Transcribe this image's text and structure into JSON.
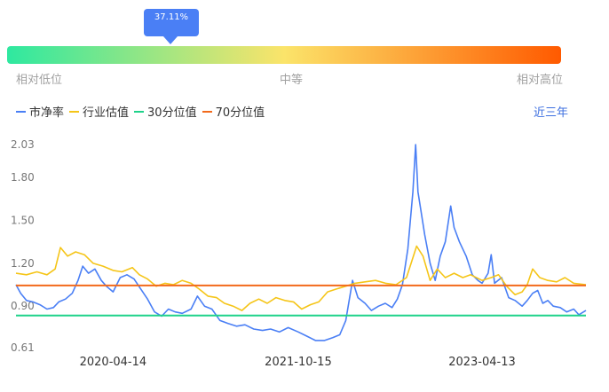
{
  "percentile": {
    "value": 37.11,
    "label": "37.11%",
    "band_labels": [
      "相对低位",
      "中等",
      "相对高位"
    ],
    "gradient_colors": [
      "#2ee8a0",
      "#fbe46a",
      "#ff5a00"
    ]
  },
  "legend": [
    {
      "name": "市净率",
      "color": "#4a7ff5"
    },
    {
      "name": "行业估值",
      "color": "#f5c518"
    },
    {
      "name": "30分位值",
      "color": "#1fd28a"
    },
    {
      "name": "70分位值",
      "color": "#f26a1b"
    }
  ],
  "period_selector": "近三年",
  "chart_data": {
    "type": "line",
    "ylim": [
      0.61,
      2.03
    ],
    "y_ticks": [
      "2.03",
      "1.80",
      "1.50",
      "1.20",
      "0.90",
      "0.61"
    ],
    "x_ticks": [
      "2020-04-14",
      "2021-10-15",
      "2023-04-13"
    ],
    "x_range": [
      "2019-07-01",
      "2024-02-15"
    ],
    "series": [
      {
        "name": "市净率",
        "color": "#4a7ff5",
        "points": [
          [
            "2019-07-01",
            1.05
          ],
          [
            "2019-07-15",
            0.99
          ],
          [
            "2019-08-01",
            0.94
          ],
          [
            "2019-08-20",
            0.93
          ],
          [
            "2019-09-10",
            0.91
          ],
          [
            "2019-10-01",
            0.88
          ],
          [
            "2019-10-20",
            0.89
          ],
          [
            "2019-11-05",
            0.93
          ],
          [
            "2019-11-25",
            0.95
          ],
          [
            "2019-12-15",
            0.99
          ],
          [
            "2020-01-01",
            1.08
          ],
          [
            "2020-01-15",
            1.18
          ],
          [
            "2020-02-01",
            1.13
          ],
          [
            "2020-02-20",
            1.16
          ],
          [
            "2020-03-10",
            1.08
          ],
          [
            "2020-03-25",
            1.04
          ],
          [
            "2020-04-14",
            1.0
          ],
          [
            "2020-05-05",
            1.1
          ],
          [
            "2020-05-25",
            1.12
          ],
          [
            "2020-06-15",
            1.09
          ],
          [
            "2020-07-05",
            1.02
          ],
          [
            "2020-07-25",
            0.95
          ],
          [
            "2020-08-15",
            0.86
          ],
          [
            "2020-09-05",
            0.83
          ],
          [
            "2020-09-25",
            0.88
          ],
          [
            "2020-10-15",
            0.86
          ],
          [
            "2020-11-05",
            0.85
          ],
          [
            "2020-12-01",
            0.88
          ],
          [
            "2020-12-20",
            0.97
          ],
          [
            "2021-01-10",
            0.9
          ],
          [
            "2021-02-01",
            0.88
          ],
          [
            "2021-02-25",
            0.8
          ],
          [
            "2021-03-20",
            0.78
          ],
          [
            "2021-04-15",
            0.76
          ],
          [
            "2021-05-10",
            0.77
          ],
          [
            "2021-06-05",
            0.74
          ],
          [
            "2021-07-01",
            0.73
          ],
          [
            "2021-07-25",
            0.74
          ],
          [
            "2021-08-20",
            0.72
          ],
          [
            "2021-09-15",
            0.75
          ],
          [
            "2021-10-15",
            0.72
          ],
          [
            "2021-11-10",
            0.69
          ],
          [
            "2021-12-05",
            0.66
          ],
          [
            "2022-01-01",
            0.66
          ],
          [
            "2022-01-25",
            0.68
          ],
          [
            "2022-02-15",
            0.7
          ],
          [
            "2022-03-05",
            0.8
          ],
          [
            "2022-03-25",
            1.08
          ],
          [
            "2022-04-10",
            0.96
          ],
          [
            "2022-05-01",
            0.92
          ],
          [
            "2022-05-20",
            0.87
          ],
          [
            "2022-06-10",
            0.9
          ],
          [
            "2022-06-30",
            0.92
          ],
          [
            "2022-07-20",
            0.89
          ],
          [
            "2022-08-05",
            0.95
          ],
          [
            "2022-08-20",
            1.05
          ],
          [
            "2022-09-05",
            1.3
          ],
          [
            "2022-09-20",
            1.7
          ],
          [
            "2022-09-28",
            2.03
          ],
          [
            "2022-10-05",
            1.7
          ],
          [
            "2022-10-15",
            1.55
          ],
          [
            "2022-10-25",
            1.4
          ],
          [
            "2022-11-10",
            1.2
          ],
          [
            "2022-11-25",
            1.08
          ],
          [
            "2022-12-10",
            1.25
          ],
          [
            "2022-12-25",
            1.35
          ],
          [
            "2023-01-10",
            1.6
          ],
          [
            "2023-01-20",
            1.45
          ],
          [
            "2023-02-05",
            1.35
          ],
          [
            "2023-02-25",
            1.25
          ],
          [
            "2023-03-15",
            1.12
          ],
          [
            "2023-04-01",
            1.08
          ],
          [
            "2023-04-13",
            1.06
          ],
          [
            "2023-05-01",
            1.13
          ],
          [
            "2023-05-10",
            1.26
          ],
          [
            "2023-05-20",
            1.06
          ],
          [
            "2023-06-10",
            1.1
          ],
          [
            "2023-07-01",
            0.96
          ],
          [
            "2023-07-20",
            0.94
          ],
          [
            "2023-08-10",
            0.9
          ],
          [
            "2023-08-25",
            0.94
          ],
          [
            "2023-09-10",
            0.99
          ],
          [
            "2023-09-25",
            1.01
          ],
          [
            "2023-10-10",
            0.92
          ],
          [
            "2023-10-25",
            0.94
          ],
          [
            "2023-11-10",
            0.9
          ],
          [
            "2023-12-01",
            0.89
          ],
          [
            "2023-12-20",
            0.86
          ],
          [
            "2024-01-10",
            0.88
          ],
          [
            "2024-01-25",
            0.84
          ],
          [
            "2024-02-15",
            0.87
          ]
        ]
      },
      {
        "name": "行业估值",
        "color": "#f5c518",
        "points": [
          [
            "2019-07-01",
            1.13
          ],
          [
            "2019-08-01",
            1.12
          ],
          [
            "2019-09-01",
            1.14
          ],
          [
            "2019-10-01",
            1.12
          ],
          [
            "2019-10-25",
            1.16
          ],
          [
            "2019-11-10",
            1.31
          ],
          [
            "2019-12-01",
            1.25
          ],
          [
            "2019-12-25",
            1.28
          ],
          [
            "2020-01-20",
            1.26
          ],
          [
            "2020-02-15",
            1.2
          ],
          [
            "2020-03-15",
            1.18
          ],
          [
            "2020-04-14",
            1.15
          ],
          [
            "2020-05-10",
            1.14
          ],
          [
            "2020-06-10",
            1.17
          ],
          [
            "2020-07-01",
            1.12
          ],
          [
            "2020-07-25",
            1.09
          ],
          [
            "2020-08-20",
            1.04
          ],
          [
            "2020-09-15",
            1.06
          ],
          [
            "2020-10-10",
            1.05
          ],
          [
            "2020-11-05",
            1.08
          ],
          [
            "2020-12-01",
            1.06
          ],
          [
            "2020-12-25",
            1.02
          ],
          [
            "2021-01-20",
            0.97
          ],
          [
            "2021-02-15",
            0.96
          ],
          [
            "2021-03-10",
            0.92
          ],
          [
            "2021-04-05",
            0.9
          ],
          [
            "2021-05-01",
            0.87
          ],
          [
            "2021-05-25",
            0.92
          ],
          [
            "2021-06-20",
            0.95
          ],
          [
            "2021-07-15",
            0.92
          ],
          [
            "2021-08-10",
            0.96
          ],
          [
            "2021-09-05",
            0.94
          ],
          [
            "2021-10-01",
            0.93
          ],
          [
            "2021-10-25",
            0.88
          ],
          [
            "2021-11-20",
            0.91
          ],
          [
            "2021-12-15",
            0.93
          ],
          [
            "2022-01-10",
            1.0
          ],
          [
            "2022-02-05",
            1.02
          ],
          [
            "2022-03-05",
            1.04
          ],
          [
            "2022-04-01",
            1.06
          ],
          [
            "2022-05-01",
            1.07
          ],
          [
            "2022-06-01",
            1.08
          ],
          [
            "2022-07-01",
            1.06
          ],
          [
            "2022-08-01",
            1.05
          ],
          [
            "2022-09-01",
            1.1
          ],
          [
            "2022-10-01",
            1.32
          ],
          [
            "2022-10-20",
            1.25
          ],
          [
            "2022-11-10",
            1.08
          ],
          [
            "2022-12-01",
            1.16
          ],
          [
            "2022-12-25",
            1.1
          ],
          [
            "2023-01-20",
            1.13
          ],
          [
            "2023-02-15",
            1.1
          ],
          [
            "2023-03-10",
            1.12
          ],
          [
            "2023-04-13",
            1.08
          ],
          [
            "2023-05-10",
            1.1
          ],
          [
            "2023-06-01",
            1.12
          ],
          [
            "2023-06-25",
            1.04
          ],
          [
            "2023-07-20",
            0.98
          ],
          [
            "2023-08-10",
            1.0
          ],
          [
            "2023-08-25",
            1.05
          ],
          [
            "2023-09-10",
            1.16
          ],
          [
            "2023-10-01",
            1.1
          ],
          [
            "2023-10-25",
            1.08
          ],
          [
            "2023-11-20",
            1.07
          ],
          [
            "2023-12-15",
            1.1
          ],
          [
            "2024-01-10",
            1.06
          ],
          [
            "2024-02-15",
            1.05
          ]
        ]
      },
      {
        "name": "30分位值",
        "color": "#1fd28a",
        "constant": 0.835
      },
      {
        "name": "70分位值",
        "color": "#f26a1b",
        "constant": 1.045
      }
    ]
  }
}
